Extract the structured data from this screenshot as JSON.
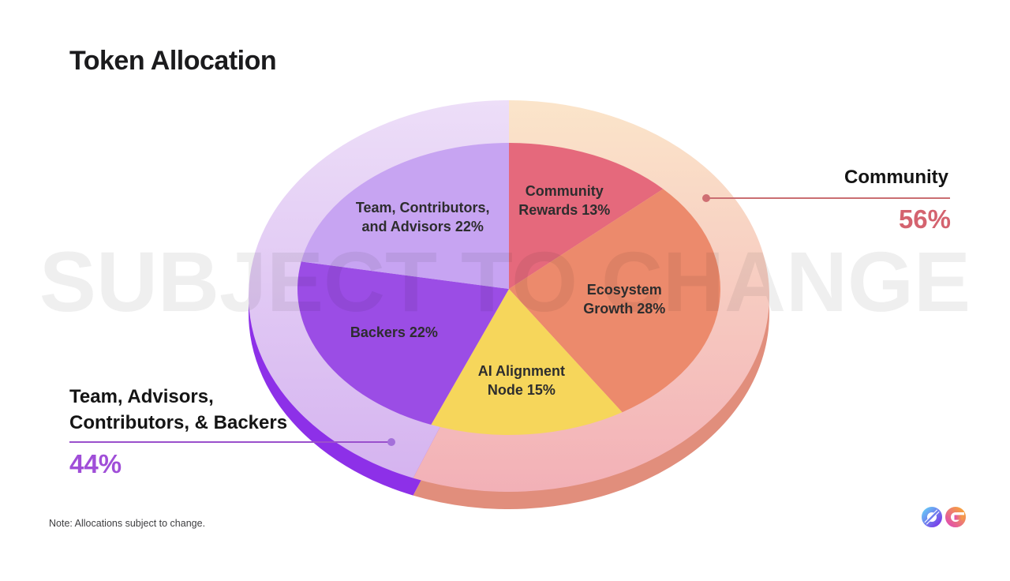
{
  "page": {
    "title": "Token Allocation",
    "watermark": "SUBJECT TO CHANGE",
    "note": "Note: Allocations subject to change.",
    "logo_glyphs": "0G"
  },
  "callouts": {
    "right": {
      "label": "Community",
      "value": "56%",
      "value_color": "#d4636f",
      "line_color": "#ca6e72",
      "dot_color": "#cf6f73"
    },
    "left": {
      "label_lines": [
        "Team, Advisors,",
        "Contributors, & Backers"
      ],
      "value": "44%",
      "value_color": "#a04ed8",
      "line_color": "#9a50cc",
      "dot_color": "#a470da"
    }
  },
  "chart_data": {
    "type": "pie",
    "title": "Token Allocation",
    "unit": "%",
    "start_angle_deg": 0,
    "direction": "clockwise",
    "style": "3d-ellipse-with-outer-ring",
    "slices": [
      {
        "label": "Community Rewards",
        "value": 13,
        "label_lines": [
          "Community",
          "Rewards 13%"
        ],
        "color": "#e5697c",
        "group": "Community"
      },
      {
        "label": "Ecosystem Growth",
        "value": 28,
        "label_lines": [
          "Ecosystem",
          "Growth 28%"
        ],
        "color": "#ec8a6c",
        "group": "Community"
      },
      {
        "label": "AI Alignment Node",
        "value": 15,
        "label_lines": [
          "AI Alignment",
          "Node 15%"
        ],
        "color": "#f6d65b",
        "group": "Community"
      },
      {
        "label": "Backers",
        "value": 22,
        "label_lines": [
          "Backers 22%"
        ],
        "color": "#9b4de5",
        "group": "Team, Advisors, Contributors, & Backers"
      },
      {
        "label": "Team, Contributors, and Advisors",
        "value": 22,
        "label_lines": [
          "Team, Contributors,",
          "and Advisors 22%"
        ],
        "color": "#c7a4f2",
        "group": "Team, Advisors, Contributors, & Backers"
      }
    ],
    "groups": [
      {
        "label": "Community",
        "value": 56,
        "ring_gradient": [
          "#fbe5ca",
          "#f2aeb6"
        ],
        "side_color": "#e18e7c"
      },
      {
        "label": "Team, Advisors, Contributors, & Backers",
        "value": 44,
        "ring_gradient": [
          "#eddef8",
          "#d3b0ef"
        ],
        "side_color": "#8d30e8"
      }
    ]
  },
  "logo": {
    "zero_gradient": [
      "#66c4f5",
      "#7a3be8"
    ],
    "g_gradient": [
      "#f7a33c",
      "#e14fae"
    ]
  }
}
